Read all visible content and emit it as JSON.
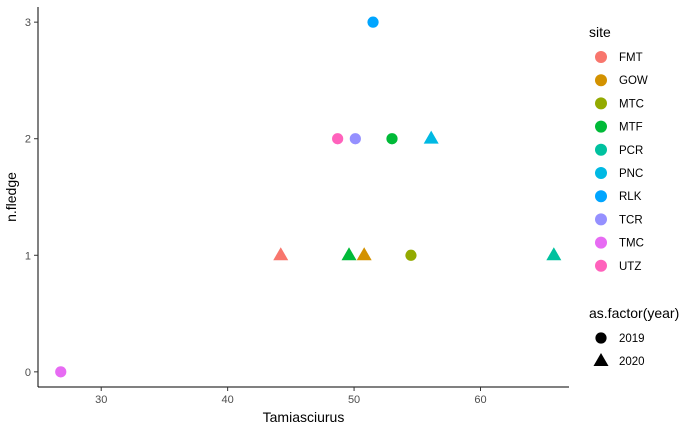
{
  "chart_data": {
    "type": "scatter",
    "xlabel": "Tamiasciurus",
    "ylabel": "n.fledge",
    "xlim": [
      25,
      67
    ],
    "ylim": [
      -0.13,
      3.13
    ],
    "x_ticks": [
      30,
      40,
      50,
      60
    ],
    "y_ticks": [
      0,
      1,
      2,
      3
    ],
    "grid": false,
    "colors": {
      "FMT": "#F8766D",
      "GOW": "#D39200",
      "MTC": "#93AA00",
      "MTF": "#00BA38",
      "PCR": "#00C19F",
      "PNC": "#00B9E3",
      "RLK": "#00A5FF",
      "TCR": "#9590FF",
      "TMC": "#E76BF3",
      "UTZ": "#FF62BC"
    },
    "points": [
      {
        "site": "TMC",
        "year": "2019",
        "x": 26.8,
        "y": 0
      },
      {
        "site": "FMT",
        "year": "2020",
        "x": 44.2,
        "y": 1
      },
      {
        "site": "MTF",
        "year": "2020",
        "x": 49.6,
        "y": 1
      },
      {
        "site": "GOW",
        "year": "2020",
        "x": 50.8,
        "y": 1
      },
      {
        "site": "MTC",
        "year": "2019",
        "x": 54.5,
        "y": 1
      },
      {
        "site": "PCR",
        "year": "2020",
        "x": 65.8,
        "y": 1
      },
      {
        "site": "UTZ",
        "year": "2019",
        "x": 48.7,
        "y": 2
      },
      {
        "site": "TCR",
        "year": "2019",
        "x": 50.1,
        "y": 2
      },
      {
        "site": "MTF",
        "year": "2019",
        "x": 53.0,
        "y": 2
      },
      {
        "site": "PNC",
        "year": "2020",
        "x": 56.1,
        "y": 2
      },
      {
        "site": "RLK",
        "year": "2019",
        "x": 51.5,
        "y": 3
      }
    ],
    "legend": {
      "position": "right",
      "color_title": "site",
      "sites": [
        "FMT",
        "GOW",
        "MTC",
        "MTF",
        "PCR",
        "PNC",
        "RLK",
        "TCR",
        "TMC",
        "UTZ"
      ],
      "shape_title": "as.factor(year)",
      "years": [
        {
          "label": "2019",
          "shape": "circle"
        },
        {
          "label": "2020",
          "shape": "triangle"
        }
      ]
    }
  }
}
